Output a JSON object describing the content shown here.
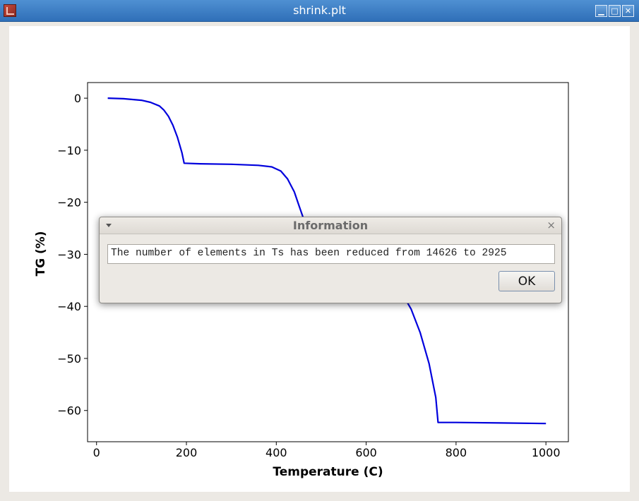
{
  "window": {
    "title": "shrink.plt",
    "controls": [
      "minimize-icon",
      "maximize-icon",
      "close-icon"
    ]
  },
  "dialog": {
    "title": "Information",
    "message": "The number of elements in Ts has been reduced from 14626 to 2925",
    "ok_label": "OK",
    "close_glyph": "×"
  },
  "chart_data": {
    "type": "line",
    "xlabel": "Temperature (C)",
    "ylabel": "TG (%)",
    "xlim": [
      -20,
      1050
    ],
    "ylim": [
      -66,
      3
    ],
    "xticks": [
      0,
      200,
      400,
      600,
      800,
      1000
    ],
    "yticks": [
      0,
      -10,
      -20,
      -30,
      -40,
      -50,
      -60
    ],
    "xtick_labels": [
      "0",
      "200",
      "400",
      "600",
      "800",
      "1000"
    ],
    "ytick_labels": [
      "0",
      "−10",
      "−20",
      "−30",
      "−40",
      "−50",
      "−60"
    ],
    "grid": false,
    "legend": "none",
    "color": "#0000dd",
    "series": [
      {
        "x": [
          25,
          60,
          100,
          120,
          140,
          150,
          160,
          170,
          180,
          190,
          195,
          230,
          300,
          360,
          390,
          410,
          425,
          440,
          450,
          460,
          475,
          490,
          520,
          560,
          600,
          640,
          680,
          700,
          720,
          740,
          755,
          760,
          800,
          900,
          1000
        ],
        "y": [
          0,
          -0.1,
          -0.4,
          -0.8,
          -1.5,
          -2.3,
          -3.5,
          -5.2,
          -7.5,
          -10.5,
          -12.5,
          -12.6,
          -12.7,
          -12.9,
          -13.2,
          -14.0,
          -15.5,
          -18.0,
          -20.5,
          -23.0,
          -25.5,
          -27.0,
          -28.7,
          -30.2,
          -32.0,
          -34.3,
          -37.5,
          -40.5,
          -45.0,
          -51.0,
          -57.5,
          -62.3,
          -62.3,
          -62.4,
          -62.5
        ]
      }
    ]
  }
}
